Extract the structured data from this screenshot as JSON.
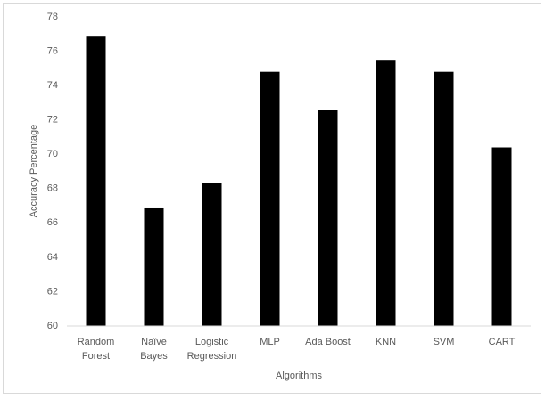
{
  "chart_data": {
    "type": "bar",
    "x_label": "Algorithms",
    "y_label": "Accuracy Percentage",
    "categories": [
      "Random Forest",
      "Naïve Bayes",
      "Logistic Regression",
      "MLP",
      "Ada Boost",
      "KNN",
      "SVM",
      "CART"
    ],
    "values": [
      76.9,
      66.9,
      68.3,
      74.8,
      72.6,
      75.5,
      74.8,
      70.4
    ],
    "color": "#000000",
    "ylim": [
      60,
      78
    ],
    "yticks": [
      60,
      62,
      64,
      66,
      68,
      70,
      72,
      74,
      76,
      78
    ],
    "grid": false
  }
}
